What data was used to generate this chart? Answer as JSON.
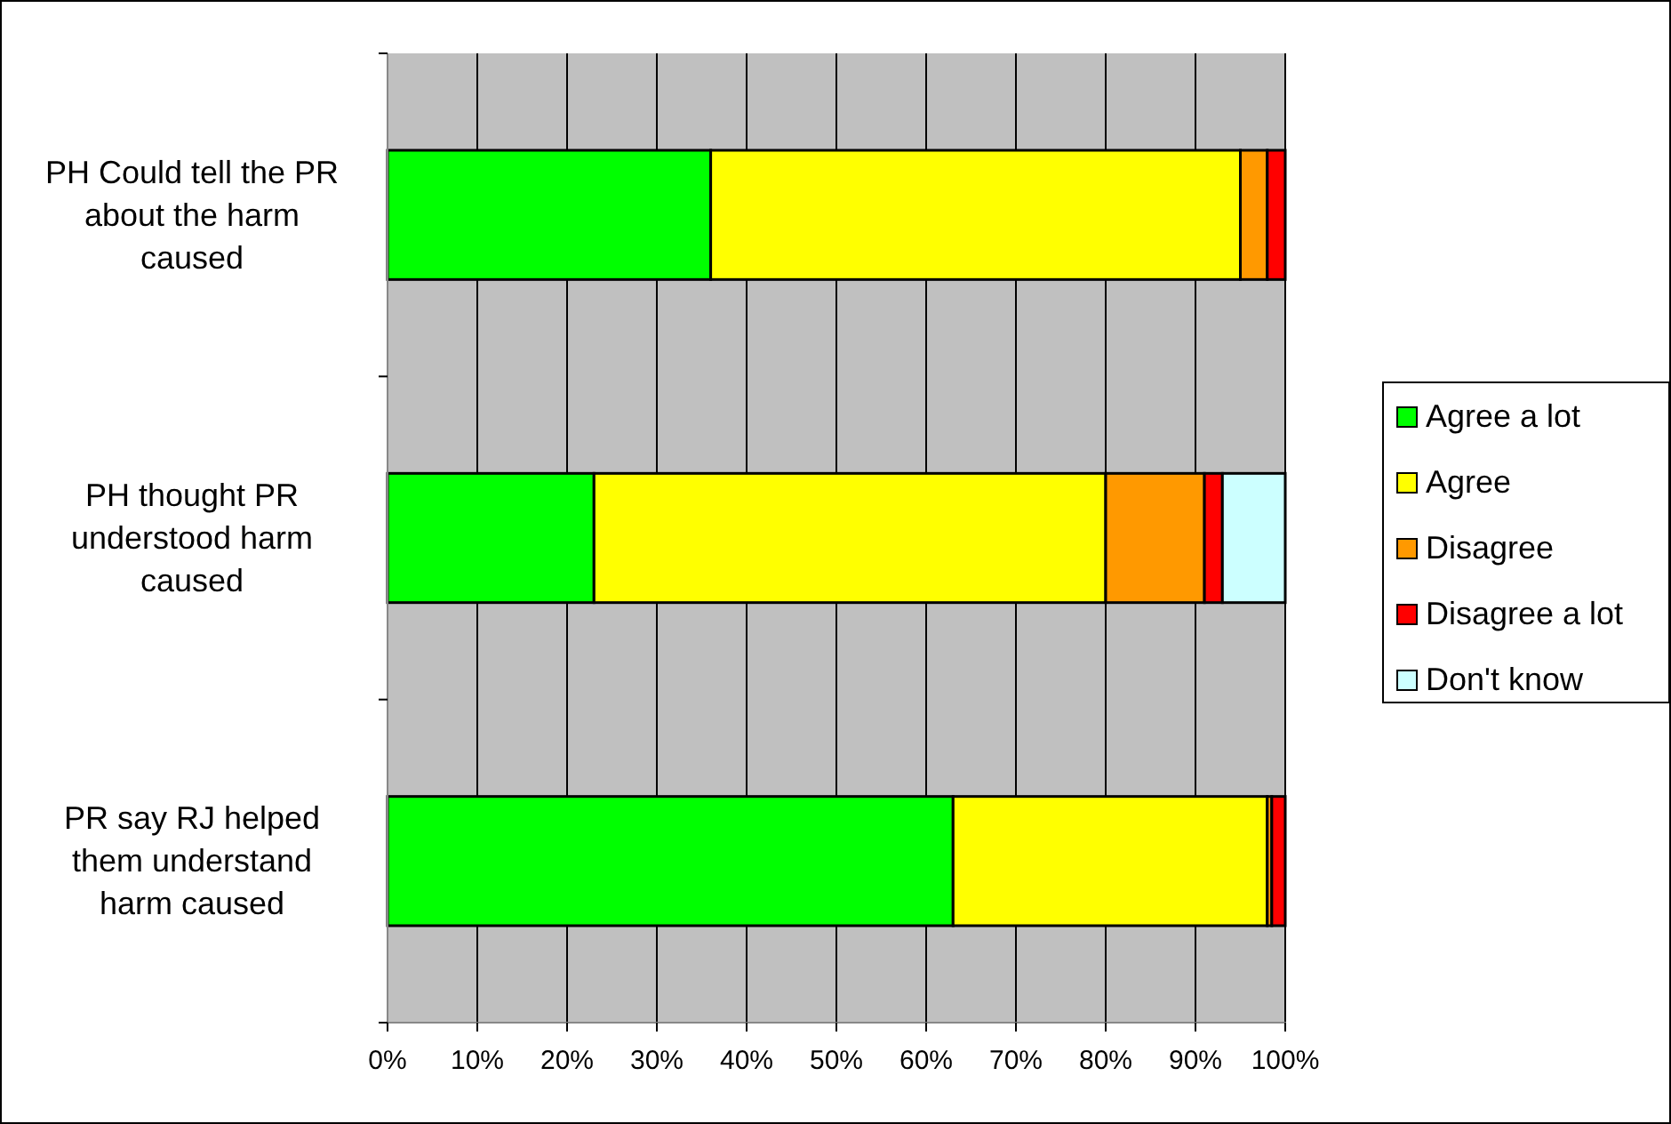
{
  "chart_data": {
    "type": "bar",
    "orientation": "horizontal",
    "stacked": true,
    "categories": [
      "PH Could tell the PR about the harm caused",
      "PH thought PR understood harm caused",
      "PR say RJ helped them understand harm caused"
    ],
    "series": [
      {
        "name": "Agree a lot",
        "color": "#00ff00",
        "values": [
          36,
          23,
          63
        ]
      },
      {
        "name": "Agree",
        "color": "#ffff00",
        "values": [
          59,
          57,
          35
        ]
      },
      {
        "name": "Disagree",
        "color": "#ff9900",
        "values": [
          3,
          11,
          0.5
        ]
      },
      {
        "name": "Disagree a lot",
        "color": "#ff0000",
        "values": [
          2,
          2,
          1.5
        ]
      },
      {
        "name": "Don't know",
        "color": "#ccffff",
        "values": [
          0,
          7,
          0
        ]
      }
    ],
    "xlim": [
      0,
      100
    ],
    "xticks": [
      {
        "value": 0,
        "label": "0%"
      },
      {
        "value": 10,
        "label": "10%"
      },
      {
        "value": 20,
        "label": "20%"
      },
      {
        "value": 30,
        "label": "30%"
      },
      {
        "value": 40,
        "label": "40%"
      },
      {
        "value": 50,
        "label": "50%"
      },
      {
        "value": 60,
        "label": "60%"
      },
      {
        "value": 70,
        "label": "70%"
      },
      {
        "value": 80,
        "label": "80%"
      },
      {
        "value": 90,
        "label": "90%"
      },
      {
        "value": 100,
        "label": "100%"
      }
    ],
    "grid": "x",
    "legend": "right"
  }
}
